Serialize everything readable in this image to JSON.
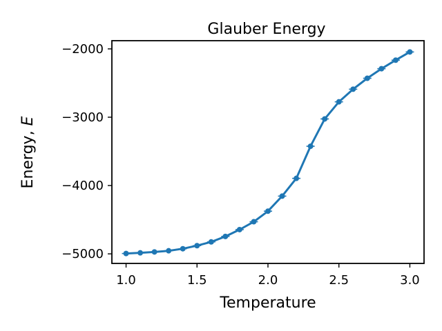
{
  "chart_data": {
    "type": "line",
    "title": "Glauber Energy",
    "xlabel": "Temperature",
    "ylabel_prefix": "Energy, ",
    "ylabel_symbol": "E",
    "xlim": [
      0.9,
      3.1
    ],
    "ylim": [
      -5140,
      -1880
    ],
    "xticks": [
      {
        "value": 1.0,
        "label": "1.0"
      },
      {
        "value": 1.5,
        "label": "1.5"
      },
      {
        "value": 2.0,
        "label": "2.0"
      },
      {
        "value": 2.5,
        "label": "2.5"
      },
      {
        "value": 3.0,
        "label": "3.0"
      }
    ],
    "yticks": [
      {
        "value": -5000,
        "label": "−5000"
      },
      {
        "value": -4000,
        "label": "−4000"
      },
      {
        "value": -3000,
        "label": "−3000"
      },
      {
        "value": -2000,
        "label": "−2000"
      }
    ],
    "grid": false,
    "series": [
      {
        "color": "#1f77b4",
        "marker": "circle",
        "error_bars": true,
        "x": [
          1.0,
          1.1,
          1.2,
          1.3,
          1.4,
          1.5,
          1.6,
          1.7,
          1.8,
          1.9,
          2.0,
          2.1,
          2.2,
          2.3,
          2.4,
          2.5,
          2.6,
          2.7,
          2.8,
          2.9,
          3.0
        ],
        "y": [
          -4995,
          -4985,
          -4972,
          -4955,
          -4925,
          -4880,
          -4825,
          -4745,
          -4645,
          -4530,
          -4375,
          -4155,
          -3895,
          -3425,
          -3025,
          -2775,
          -2590,
          -2430,
          -2290,
          -2165,
          -2045
        ]
      }
    ]
  }
}
